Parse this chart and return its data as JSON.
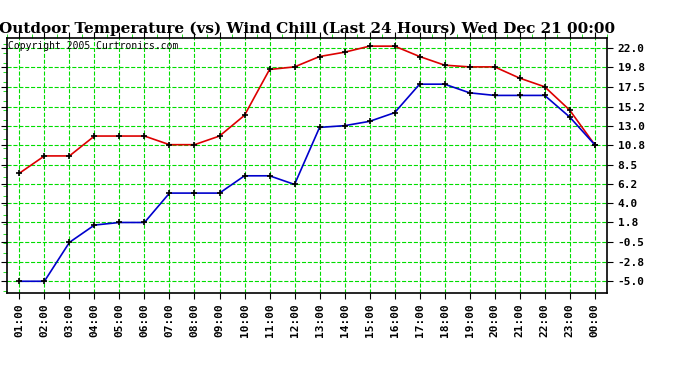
{
  "title": "Outdoor Temperature (vs) Wind Chill (Last 24 Hours) Wed Dec 21 00:00",
  "copyright": "Copyright 2005 Curtronics.com",
  "x_labels": [
    "01:00",
    "02:00",
    "03:00",
    "04:00",
    "05:00",
    "06:00",
    "07:00",
    "08:00",
    "09:00",
    "10:00",
    "11:00",
    "12:00",
    "13:00",
    "14:00",
    "15:00",
    "16:00",
    "17:00",
    "18:00",
    "19:00",
    "20:00",
    "21:00",
    "22:00",
    "23:00",
    "00:00"
  ],
  "red_data": [
    7.5,
    9.5,
    9.5,
    11.8,
    11.8,
    11.8,
    10.8,
    10.8,
    11.8,
    14.2,
    19.5,
    19.8,
    21.0,
    21.5,
    22.2,
    22.2,
    21.0,
    20.0,
    19.8,
    19.8,
    18.5,
    17.5,
    14.8,
    10.8
  ],
  "blue_data": [
    -5.0,
    -5.0,
    -0.5,
    1.5,
    1.8,
    1.8,
    5.2,
    5.2,
    5.2,
    7.2,
    7.2,
    6.2,
    12.8,
    13.0,
    13.5,
    14.5,
    17.8,
    17.8,
    16.8,
    16.5,
    16.5,
    16.5,
    14.0,
    10.8
  ],
  "y_ticks": [
    -5.0,
    -2.8,
    -0.5,
    1.8,
    4.0,
    6.2,
    8.5,
    10.8,
    13.0,
    15.2,
    17.5,
    19.8,
    22.0
  ],
  "ylim": [
    -6.3,
    23.2
  ],
  "bg_color": "#ffffff",
  "plot_bg_color": "#ffffff",
  "grid_color": "#00dd00",
  "red_color": "#dd0000",
  "blue_color": "#0000cc",
  "title_fontsize": 11,
  "copyright_fontsize": 7,
  "tick_fontsize": 8
}
